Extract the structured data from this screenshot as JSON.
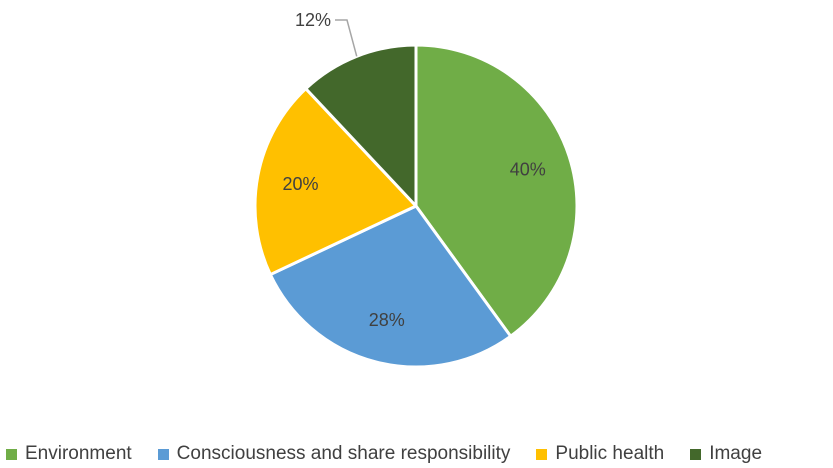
{
  "chart_data": {
    "type": "pie",
    "title": "",
    "categories": [
      "Environment",
      "Consciousness and share responsibility",
      "Public health",
      "Image"
    ],
    "values": [
      40,
      28,
      20,
      12
    ],
    "data_labels": [
      "40%",
      "28%",
      "20%",
      "12%"
    ],
    "colors": [
      "#70ad47",
      "#5b9bd5",
      "#ffc000",
      "#43682b"
    ],
    "start_angle_deg": 0,
    "direction": "clockwise",
    "legend_position": "bottom"
  }
}
